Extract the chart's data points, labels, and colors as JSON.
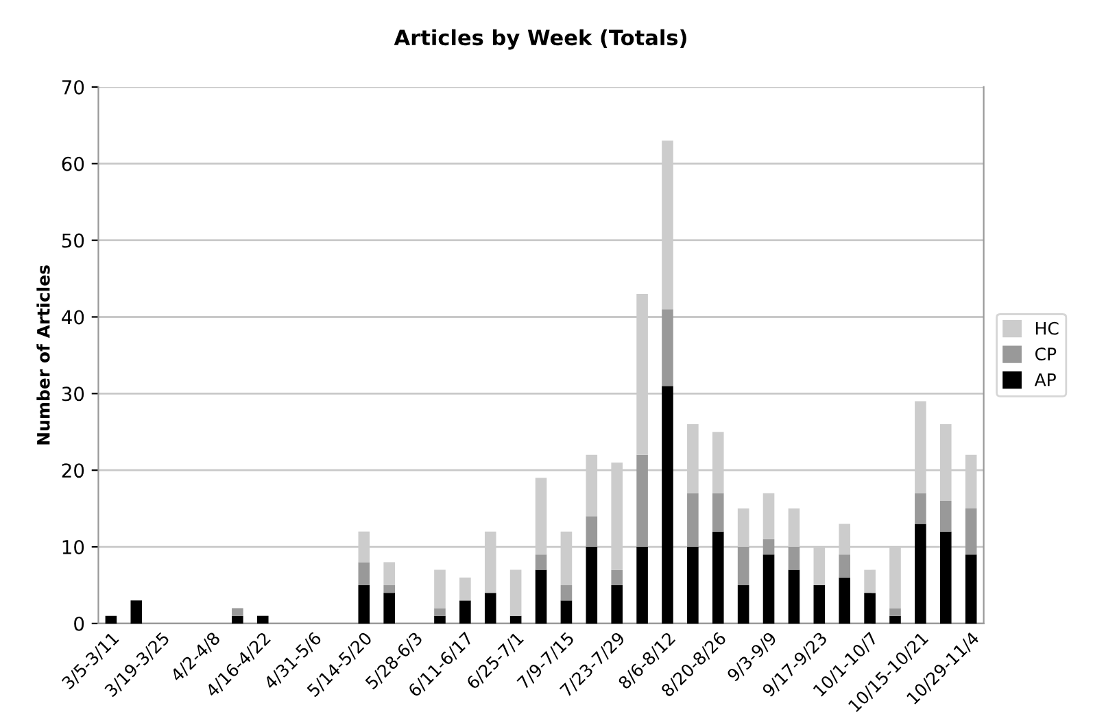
{
  "chart_data": {
    "type": "bar",
    "title": "Articles by Week (Totals)",
    "ylabel": "Number of Articles",
    "categories": [
      "3/5-3/11",
      null,
      "3/19-3/25",
      null,
      "4/2-4/8",
      null,
      "4/16-4/22",
      null,
      "4/31-5/6",
      null,
      "5/14-5/20",
      null,
      "5/28-6/3",
      null,
      "6/11-6/17",
      null,
      "6/25-7/1",
      null,
      "7/9-7/15",
      null,
      "7/23-7/29",
      null,
      "8/6-8/12",
      null,
      "8/20-8/26",
      null,
      "9/3-9/9",
      null,
      "9/17-9/23",
      null,
      "10/1-10/7",
      null,
      "10/15-10/21",
      null,
      "10/29-11/4"
    ],
    "stacked": true,
    "series": [
      {
        "name": "AP",
        "color": "#000000",
        "values": [
          1,
          3,
          0,
          0,
          0,
          1,
          1,
          0,
          0,
          0,
          5,
          4,
          0,
          1,
          3,
          4,
          1,
          7,
          3,
          10,
          5,
          10,
          31,
          10,
          12,
          5,
          9,
          7,
          5,
          6,
          4,
          1,
          13,
          12,
          9
        ]
      },
      {
        "name": "CP",
        "color": "#999999",
        "values": [
          0,
          0,
          0,
          0,
          0,
          1,
          0,
          0,
          0,
          0,
          3,
          1,
          0,
          1,
          0,
          0,
          0,
          2,
          2,
          4,
          2,
          12,
          10,
          7,
          5,
          5,
          2,
          3,
          0,
          3,
          0,
          1,
          4,
          4,
          6
        ]
      },
      {
        "name": "HC",
        "color": "#cccccc",
        "values": [
          0,
          0,
          0,
          0,
          0,
          0,
          0,
          0,
          0,
          0,
          4,
          3,
          0,
          5,
          3,
          8,
          6,
          10,
          7,
          8,
          14,
          21,
          22,
          9,
          8,
          5,
          6,
          5,
          5,
          4,
          3,
          8,
          12,
          10,
          7
        ]
      }
    ],
    "ylim": [
      0,
      70
    ],
    "yticks": [
      0,
      10,
      20,
      30,
      40,
      50,
      60,
      70
    ],
    "grid": "y",
    "legend": "right"
  }
}
